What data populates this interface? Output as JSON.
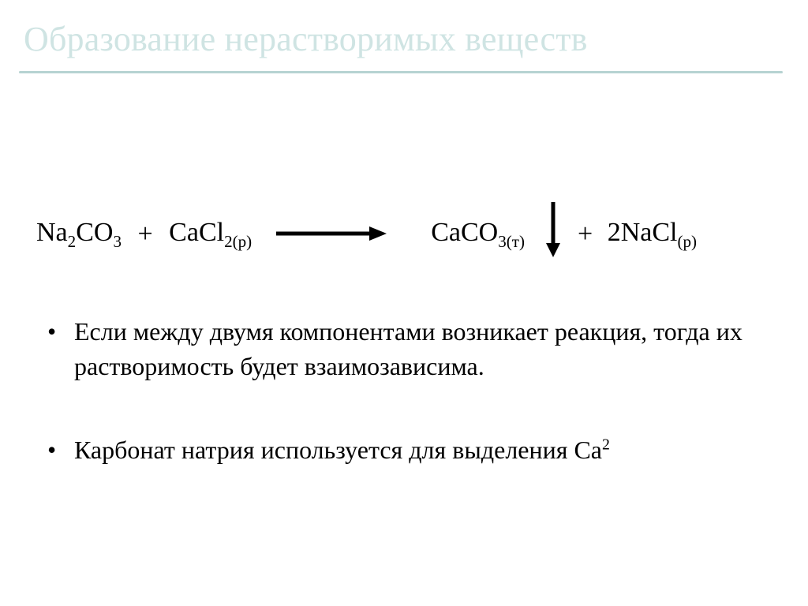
{
  "slide": {
    "title": "Образование нерастворимых веществ",
    "title_color": "#cfe4e3",
    "rule_color": "#b6d3d2",
    "background_color": "#ffffff",
    "text_color": "#000000",
    "title_fontsize": 44,
    "body_fontsize": 32,
    "equation_fontsize": 34
  },
  "equation": {
    "reactant1": {
      "base": "Na",
      "sub1": "2",
      "co": "CO",
      "sub2": "3"
    },
    "plus1": "+",
    "reactant2": {
      "base": "CaCl",
      "sub": "2(р)"
    },
    "product1": {
      "base": "CaCO",
      "sub": "3(т)"
    },
    "plus2": "+",
    "product2": {
      "coef": "2",
      "base": "NaCl",
      "sub": "(р)"
    },
    "arrow": {
      "length": 140,
      "stroke_width": 5,
      "head_w": 22,
      "head_h": 18,
      "color": "#000000"
    },
    "down_arrow": {
      "length": 70,
      "stroke_width": 5,
      "head_w": 18,
      "head_h": 18,
      "color": "#000000"
    }
  },
  "bullets": [
    {
      "text": "Если между двумя компонентами возникает реакция, тогда их растворимость будет взаимозависима."
    },
    {
      "text_pre": "Карбонат натрия используется для выделения Ca",
      "sup": "2"
    }
  ]
}
